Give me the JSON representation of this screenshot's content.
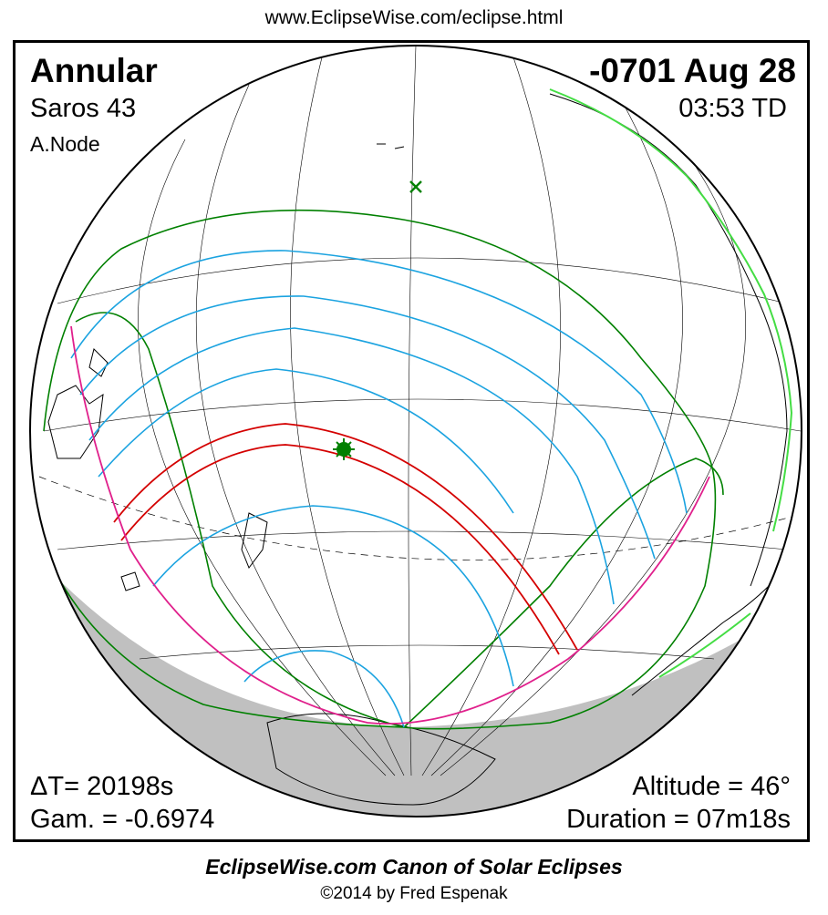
{
  "header": {
    "url": "www.EclipseWise.com/eclipse.html"
  },
  "eclipse": {
    "type": "Annular",
    "saros": "Saros  43",
    "node": "A.Node",
    "date": "-0701 Aug 28",
    "time": "03:53 TD",
    "delta_t": "ΔT=  20198s",
    "gamma": "Gam. = -0.6974",
    "altitude": "Altitude = 46°",
    "duration": "Duration = 07m18s"
  },
  "footer": {
    "title": "EclipseWise.com Canon of Solar Eclipses",
    "copyright": "©2014 by Fred Espenak"
  },
  "colors": {
    "penumbra_limits": "#008000",
    "partial_magnitude_curves": "#1ba3e0",
    "central_path": "#d40000",
    "sunrise_sunset_curve": "#e0208c",
    "night_side": "#c0c0c0",
    "coastlines": "#000000",
    "coastline_highlight": "#44dd44"
  },
  "markers": {
    "greatest_eclipse_icon": "star-burst",
    "subsolar_point_icon": "x-mark"
  }
}
